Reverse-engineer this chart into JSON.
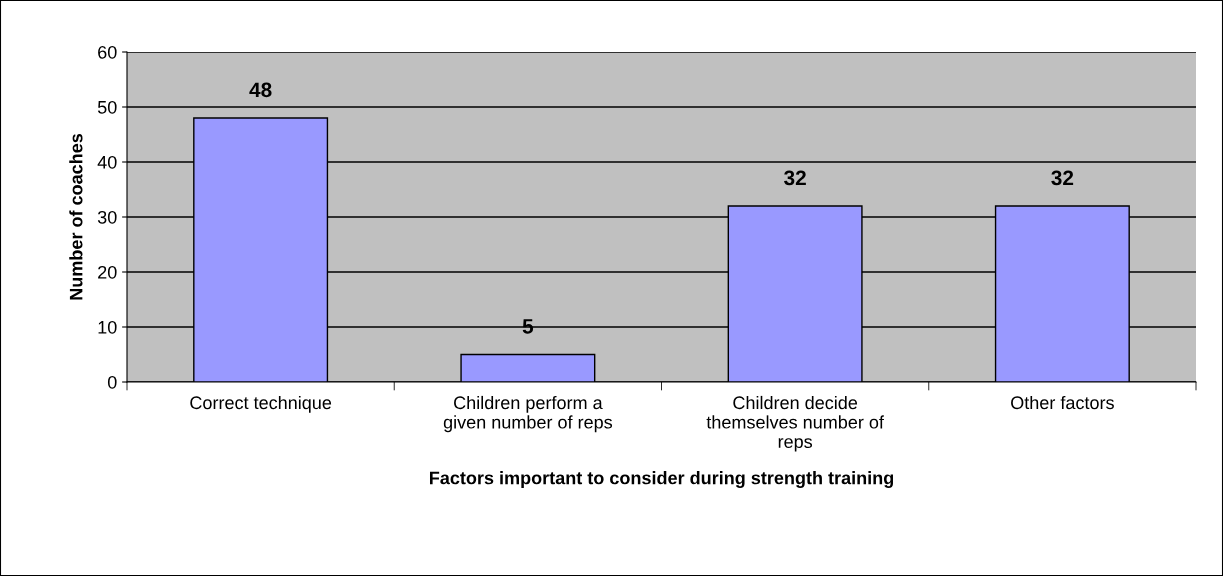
{
  "chart_data": {
    "type": "bar",
    "xlabel": "Factors important to consider during strength training",
    "ylabel": "Number of coaches",
    "categories": [
      "Correct technique",
      "Children perform a\ngiven number of reps",
      "Children decide\nthemselves number of\nreps",
      "Other factors"
    ],
    "values": [
      48,
      5,
      32,
      32
    ],
    "color": "#9999ff",
    "ylim": [
      0,
      60
    ],
    "yticks": [
      0,
      10,
      20,
      30,
      40,
      50,
      60
    ],
    "grid": "y",
    "data_labels": true,
    "legend": false
  }
}
